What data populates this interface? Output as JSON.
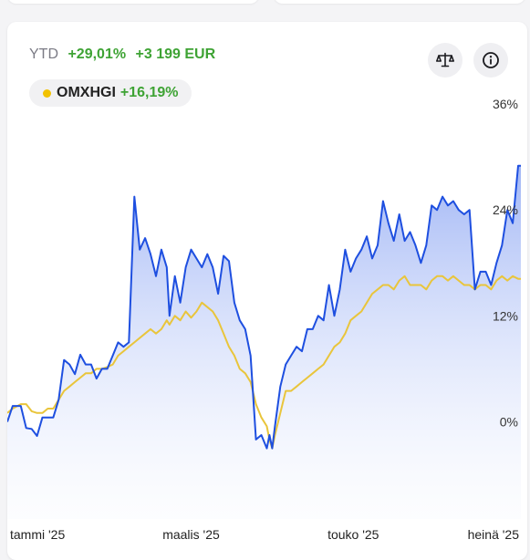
{
  "summary": {
    "period": "YTD",
    "return_pct": "+29,01%",
    "return_abs": "+3 199 EUR"
  },
  "toolbar": {
    "compare_icon": "scale-icon",
    "info_icon": "info-icon"
  },
  "benchmark_chip": {
    "name": "OMXHGI",
    "return_pct": "+16,19%",
    "color": "#f2c200"
  },
  "chart_data": {
    "type": "area",
    "title": "",
    "xlabel": "",
    "ylabel": "",
    "x_range": [
      "2025-01-01",
      "2025-07-10"
    ],
    "y_range": [
      -11,
      36
    ],
    "y_unit": "%",
    "grid": false,
    "y_tick_values": [
      0,
      12,
      24,
      36
    ],
    "y_tick_labels": [
      "0%",
      "12%",
      "24%",
      "36%"
    ],
    "x_tick_dates": [
      "2025-01-08",
      "2025-03-10",
      "2025-05-09",
      "2025-07-08"
    ],
    "x_tick_labels": [
      "tammi '25",
      "maalis '25",
      "touko '25",
      "heinä '25"
    ],
    "colors": {
      "portfolio": "#1e4fe0",
      "benchmark": "#e9c53b"
    },
    "series": [
      {
        "role": "portfolio",
        "x": [
          "2025-01-01",
          "2025-01-03",
          "2025-01-06",
          "2025-01-08",
          "2025-01-10",
          "2025-01-12",
          "2025-01-14",
          "2025-01-16",
          "2025-01-18",
          "2025-01-20",
          "2025-01-22",
          "2025-01-24",
          "2025-01-26",
          "2025-01-28",
          "2025-01-30",
          "2025-02-01",
          "2025-02-03",
          "2025-02-05",
          "2025-02-07",
          "2025-02-09",
          "2025-02-11",
          "2025-02-13",
          "2025-02-15",
          "2025-02-17",
          "2025-02-19",
          "2025-02-21",
          "2025-02-23",
          "2025-02-25",
          "2025-02-27",
          "2025-03-01",
          "2025-03-02",
          "2025-03-04",
          "2025-03-06",
          "2025-03-08",
          "2025-03-10",
          "2025-03-12",
          "2025-03-14",
          "2025-03-16",
          "2025-03-18",
          "2025-03-20",
          "2025-03-22",
          "2025-03-24",
          "2025-03-26",
          "2025-03-28",
          "2025-03-30",
          "2025-04-01",
          "2025-04-03",
          "2025-04-05",
          "2025-04-07",
          "2025-04-08",
          "2025-04-09",
          "2025-04-10",
          "2025-04-12",
          "2025-04-14",
          "2025-04-16",
          "2025-04-18",
          "2025-04-20",
          "2025-04-22",
          "2025-04-24",
          "2025-04-26",
          "2025-04-28",
          "2025-04-30",
          "2025-05-02",
          "2025-05-04",
          "2025-05-06",
          "2025-05-08",
          "2025-05-10",
          "2025-05-12",
          "2025-05-14",
          "2025-05-16",
          "2025-05-18",
          "2025-05-20",
          "2025-05-22",
          "2025-05-24",
          "2025-05-26",
          "2025-05-28",
          "2025-05-30",
          "2025-06-01",
          "2025-06-03",
          "2025-06-05",
          "2025-06-07",
          "2025-06-09",
          "2025-06-11",
          "2025-06-13",
          "2025-06-15",
          "2025-06-17",
          "2025-06-19",
          "2025-06-21",
          "2025-06-23",
          "2025-06-25",
          "2025-06-27",
          "2025-06-29",
          "2025-07-01",
          "2025-07-03",
          "2025-07-05",
          "2025-07-07",
          "2025-07-09",
          "2025-07-10"
        ],
        "y": [
          0.0,
          1.8,
          1.8,
          -0.7,
          -0.8,
          -1.6,
          0.5,
          0.5,
          0.5,
          2.5,
          7.0,
          6.5,
          5.4,
          7.6,
          6.5,
          6.5,
          4.9,
          6.0,
          6.0,
          7.5,
          9.0,
          8.5,
          9.0,
          25.5,
          19.5,
          20.8,
          19.0,
          16.5,
          19.5,
          17.5,
          12.0,
          16.5,
          13.5,
          17.5,
          19.5,
          18.5,
          17.5,
          19.0,
          17.5,
          14.5,
          18.8,
          18.2,
          13.5,
          11.5,
          10.5,
          7.5,
          -2.0,
          -1.5,
          -3.0,
          -1.5,
          -3.0,
          -0.5,
          4.0,
          6.5,
          7.5,
          8.5,
          8.0,
          10.5,
          10.5,
          12.0,
          11.5,
          15.5,
          12.0,
          15.0,
          19.5,
          17.0,
          18.5,
          19.5,
          21.0,
          18.5,
          20.0,
          25.0,
          22.5,
          20.5,
          23.5,
          20.5,
          21.5,
          20.0,
          18.0,
          20.0,
          24.5,
          24.0,
          25.5,
          24.5,
          25.0,
          24.0,
          23.5,
          24.0,
          15.0,
          17.0,
          17.0,
          15.5,
          18.0,
          20.0,
          24.0,
          22.5,
          29.0,
          29.0
        ]
      },
      {
        "role": "benchmark",
        "x": [
          "2025-01-01",
          "2025-01-03",
          "2025-01-06",
          "2025-01-08",
          "2025-01-10",
          "2025-01-12",
          "2025-01-14",
          "2025-01-16",
          "2025-01-18",
          "2025-01-20",
          "2025-01-22",
          "2025-01-24",
          "2025-01-26",
          "2025-01-28",
          "2025-01-30",
          "2025-02-01",
          "2025-02-03",
          "2025-02-05",
          "2025-02-07",
          "2025-02-09",
          "2025-02-11",
          "2025-02-13",
          "2025-02-15",
          "2025-02-17",
          "2025-02-19",
          "2025-02-21",
          "2025-02-23",
          "2025-02-25",
          "2025-02-27",
          "2025-03-01",
          "2025-03-02",
          "2025-03-04",
          "2025-03-06",
          "2025-03-08",
          "2025-03-10",
          "2025-03-12",
          "2025-03-14",
          "2025-03-16",
          "2025-03-18",
          "2025-03-20",
          "2025-03-22",
          "2025-03-24",
          "2025-03-26",
          "2025-03-28",
          "2025-03-30",
          "2025-04-01",
          "2025-04-03",
          "2025-04-05",
          "2025-04-07",
          "2025-04-08",
          "2025-04-09",
          "2025-04-10",
          "2025-04-12",
          "2025-04-14",
          "2025-04-16",
          "2025-04-18",
          "2025-04-20",
          "2025-04-22",
          "2025-04-24",
          "2025-04-26",
          "2025-04-28",
          "2025-04-30",
          "2025-05-02",
          "2025-05-04",
          "2025-05-06",
          "2025-05-08",
          "2025-05-10",
          "2025-05-12",
          "2025-05-14",
          "2025-05-16",
          "2025-05-18",
          "2025-05-20",
          "2025-05-22",
          "2025-05-24",
          "2025-05-26",
          "2025-05-28",
          "2025-05-30",
          "2025-06-01",
          "2025-06-03",
          "2025-06-05",
          "2025-06-07",
          "2025-06-09",
          "2025-06-11",
          "2025-06-13",
          "2025-06-15",
          "2025-06-17",
          "2025-06-19",
          "2025-06-21",
          "2025-06-23",
          "2025-06-25",
          "2025-06-27",
          "2025-06-29",
          "2025-07-01",
          "2025-07-03",
          "2025-07-05",
          "2025-07-07",
          "2025-07-09",
          "2025-07-10"
        ],
        "y": [
          1.0,
          1.5,
          2.0,
          2.0,
          1.2,
          1.0,
          1.0,
          1.5,
          1.5,
          2.5,
          3.5,
          4.0,
          4.5,
          5.0,
          5.5,
          5.5,
          6.0,
          6.0,
          6.2,
          6.5,
          7.5,
          8.0,
          8.5,
          9.0,
          9.5,
          10.0,
          10.5,
          10.0,
          10.5,
          11.5,
          11.0,
          12.0,
          11.5,
          12.5,
          11.8,
          12.5,
          13.5,
          13.0,
          12.5,
          11.5,
          10.0,
          8.5,
          7.5,
          6.0,
          5.5,
          4.5,
          2.0,
          0.5,
          -0.5,
          -2.0,
          -3.0,
          -1.5,
          1.0,
          3.5,
          3.5,
          4.0,
          4.5,
          5.0,
          5.5,
          6.0,
          6.5,
          7.5,
          8.5,
          9.0,
          10.0,
          11.5,
          12.0,
          12.5,
          13.5,
          14.5,
          15.0,
          15.5,
          15.5,
          15.0,
          16.0,
          16.5,
          15.5,
          15.5,
          15.5,
          15.0,
          16.0,
          16.5,
          16.5,
          16.0,
          16.5,
          16.0,
          15.5,
          15.5,
          15.0,
          15.5,
          15.5,
          15.0,
          16.0,
          16.5,
          16.0,
          16.5,
          16.2,
          16.2
        ]
      }
    ]
  }
}
